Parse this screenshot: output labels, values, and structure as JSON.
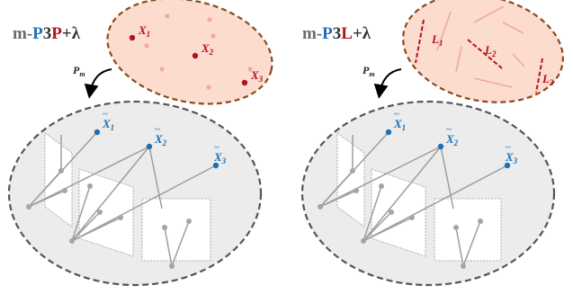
{
  "colors": {
    "grey_text": "#6b6b6b",
    "blue": "#1f6fb5",
    "red": "#b3141b",
    "orange_fill": "#fbdccf",
    "orange_stroke": "#8a4a1c",
    "gray_fill": "#ececec",
    "gray_stroke": "#555555",
    "point_fill": "#a5a5a5",
    "faint_dot": "#f2a7a7"
  },
  "left_panel": {
    "title": {
      "prefix": "m-",
      "p1": "P",
      "num": "3",
      "p2": "P",
      "suffix": "+λ"
    },
    "arrow_label": {
      "main": "P",
      "sub": "m"
    },
    "points": [
      {
        "main": "X",
        "sub": "1"
      },
      {
        "main": "X",
        "sub": "2"
      },
      {
        "main": "X",
        "sub": "3"
      }
    ],
    "projected": [
      {
        "main": "X",
        "sub": "1"
      },
      {
        "main": "X",
        "sub": "2"
      },
      {
        "main": "X",
        "sub": "3"
      }
    ]
  },
  "right_panel": {
    "title": {
      "prefix": "m-",
      "p1": "P",
      "num": "3",
      "p2": "L",
      "suffix": "+λ"
    },
    "arrow_label": {
      "main": "P",
      "sub": "m"
    },
    "lines": [
      {
        "main": "L",
        "sub": "1"
      },
      {
        "main": "L",
        "sub": "2"
      },
      {
        "main": "L",
        "sub": "3"
      }
    ],
    "projected": [
      {
        "main": "X",
        "sub": "1"
      },
      {
        "main": "X",
        "sub": "2"
      },
      {
        "main": "X",
        "sub": "3"
      }
    ]
  }
}
